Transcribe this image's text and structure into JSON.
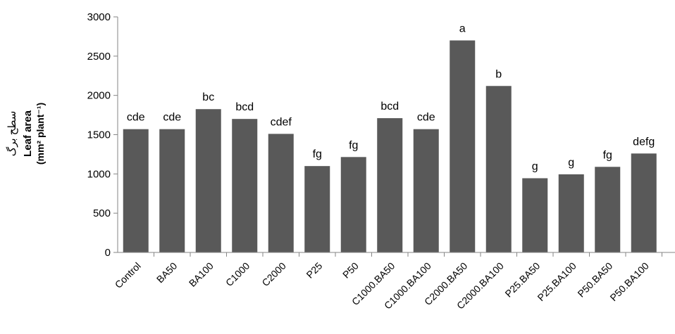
{
  "chart_data": {
    "type": "bar",
    "ylabel_persian": "سطح برگ",
    "ylabel": "Leaf area",
    "ylabel_unit": "(mm² plant⁻¹)",
    "xlabel": "",
    "ylim": [
      0,
      3000
    ],
    "yticks": [
      0,
      500,
      1000,
      1500,
      2000,
      2500,
      3000
    ],
    "grid": false,
    "bar_color": "#595959",
    "categories": [
      "Control",
      "BA50",
      "BA100",
      "C1000",
      "C2000",
      "P25",
      "P50",
      "C1000.BA50",
      "C1000.BA100",
      "C2000.BA50",
      "C2000.BA100",
      "P25.BA50",
      "P25.BA100",
      "P50.BA50",
      "P50.BA100"
    ],
    "values": [
      1570,
      1570,
      1825,
      1700,
      1510,
      1100,
      1215,
      1710,
      1570,
      2700,
      2120,
      945,
      995,
      1090,
      1260
    ],
    "labels": [
      "cde",
      "cde",
      "bc",
      "bcd",
      "cdef",
      "fg",
      "fg",
      "bcd",
      "cde",
      "a",
      "b",
      "g",
      "g",
      "fg",
      "defg"
    ]
  }
}
